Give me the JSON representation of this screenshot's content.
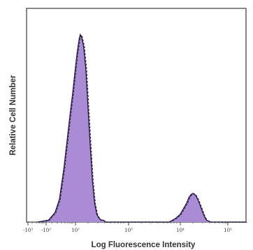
{
  "chart_data": {
    "type": "area",
    "title": "",
    "xlabel": "Log Fluorescence Intensity",
    "ylabel": "Relative Cell Number",
    "x_scale": "biexponential",
    "x_tick_labels": [
      "-10³",
      "-10²",
      "10²",
      "10³",
      "10⁴",
      "10⁵"
    ],
    "fill_color": "#a98bd6",
    "outline_color": "#241445",
    "dashed_color": "#2a2a2a",
    "grid": false,
    "legend": "none",
    "series": [
      {
        "x": [
          0.05,
          0.1,
          0.13,
          0.15,
          0.17,
          0.19,
          0.2,
          0.21,
          0.22,
          0.23,
          0.24,
          0.245,
          0.25,
          0.26,
          0.27,
          0.28,
          0.29,
          0.3,
          0.31,
          0.32,
          0.33,
          0.34,
          0.35,
          0.36,
          0.38,
          0.4,
          0.45,
          0.55,
          0.6,
          0.65,
          0.68,
          0.7,
          0.72,
          0.73,
          0.74,
          0.75,
          0.76,
          0.77,
          0.78,
          0.79,
          0.8,
          0.81,
          0.82,
          0.84,
          0.9,
          1.0
        ],
        "values": [
          0,
          1,
          5,
          12,
          28,
          48,
          58,
          67,
          78,
          88,
          96,
          98,
          97,
          92,
          80,
          60,
          40,
          22,
          10,
          4,
          2,
          1,
          1,
          0,
          0,
          0,
          0,
          0,
          0,
          0,
          2,
          4,
          8,
          10,
          13,
          14.5,
          15,
          14,
          12,
          9,
          6,
          3,
          1,
          0,
          0,
          0
        ]
      }
    ]
  }
}
